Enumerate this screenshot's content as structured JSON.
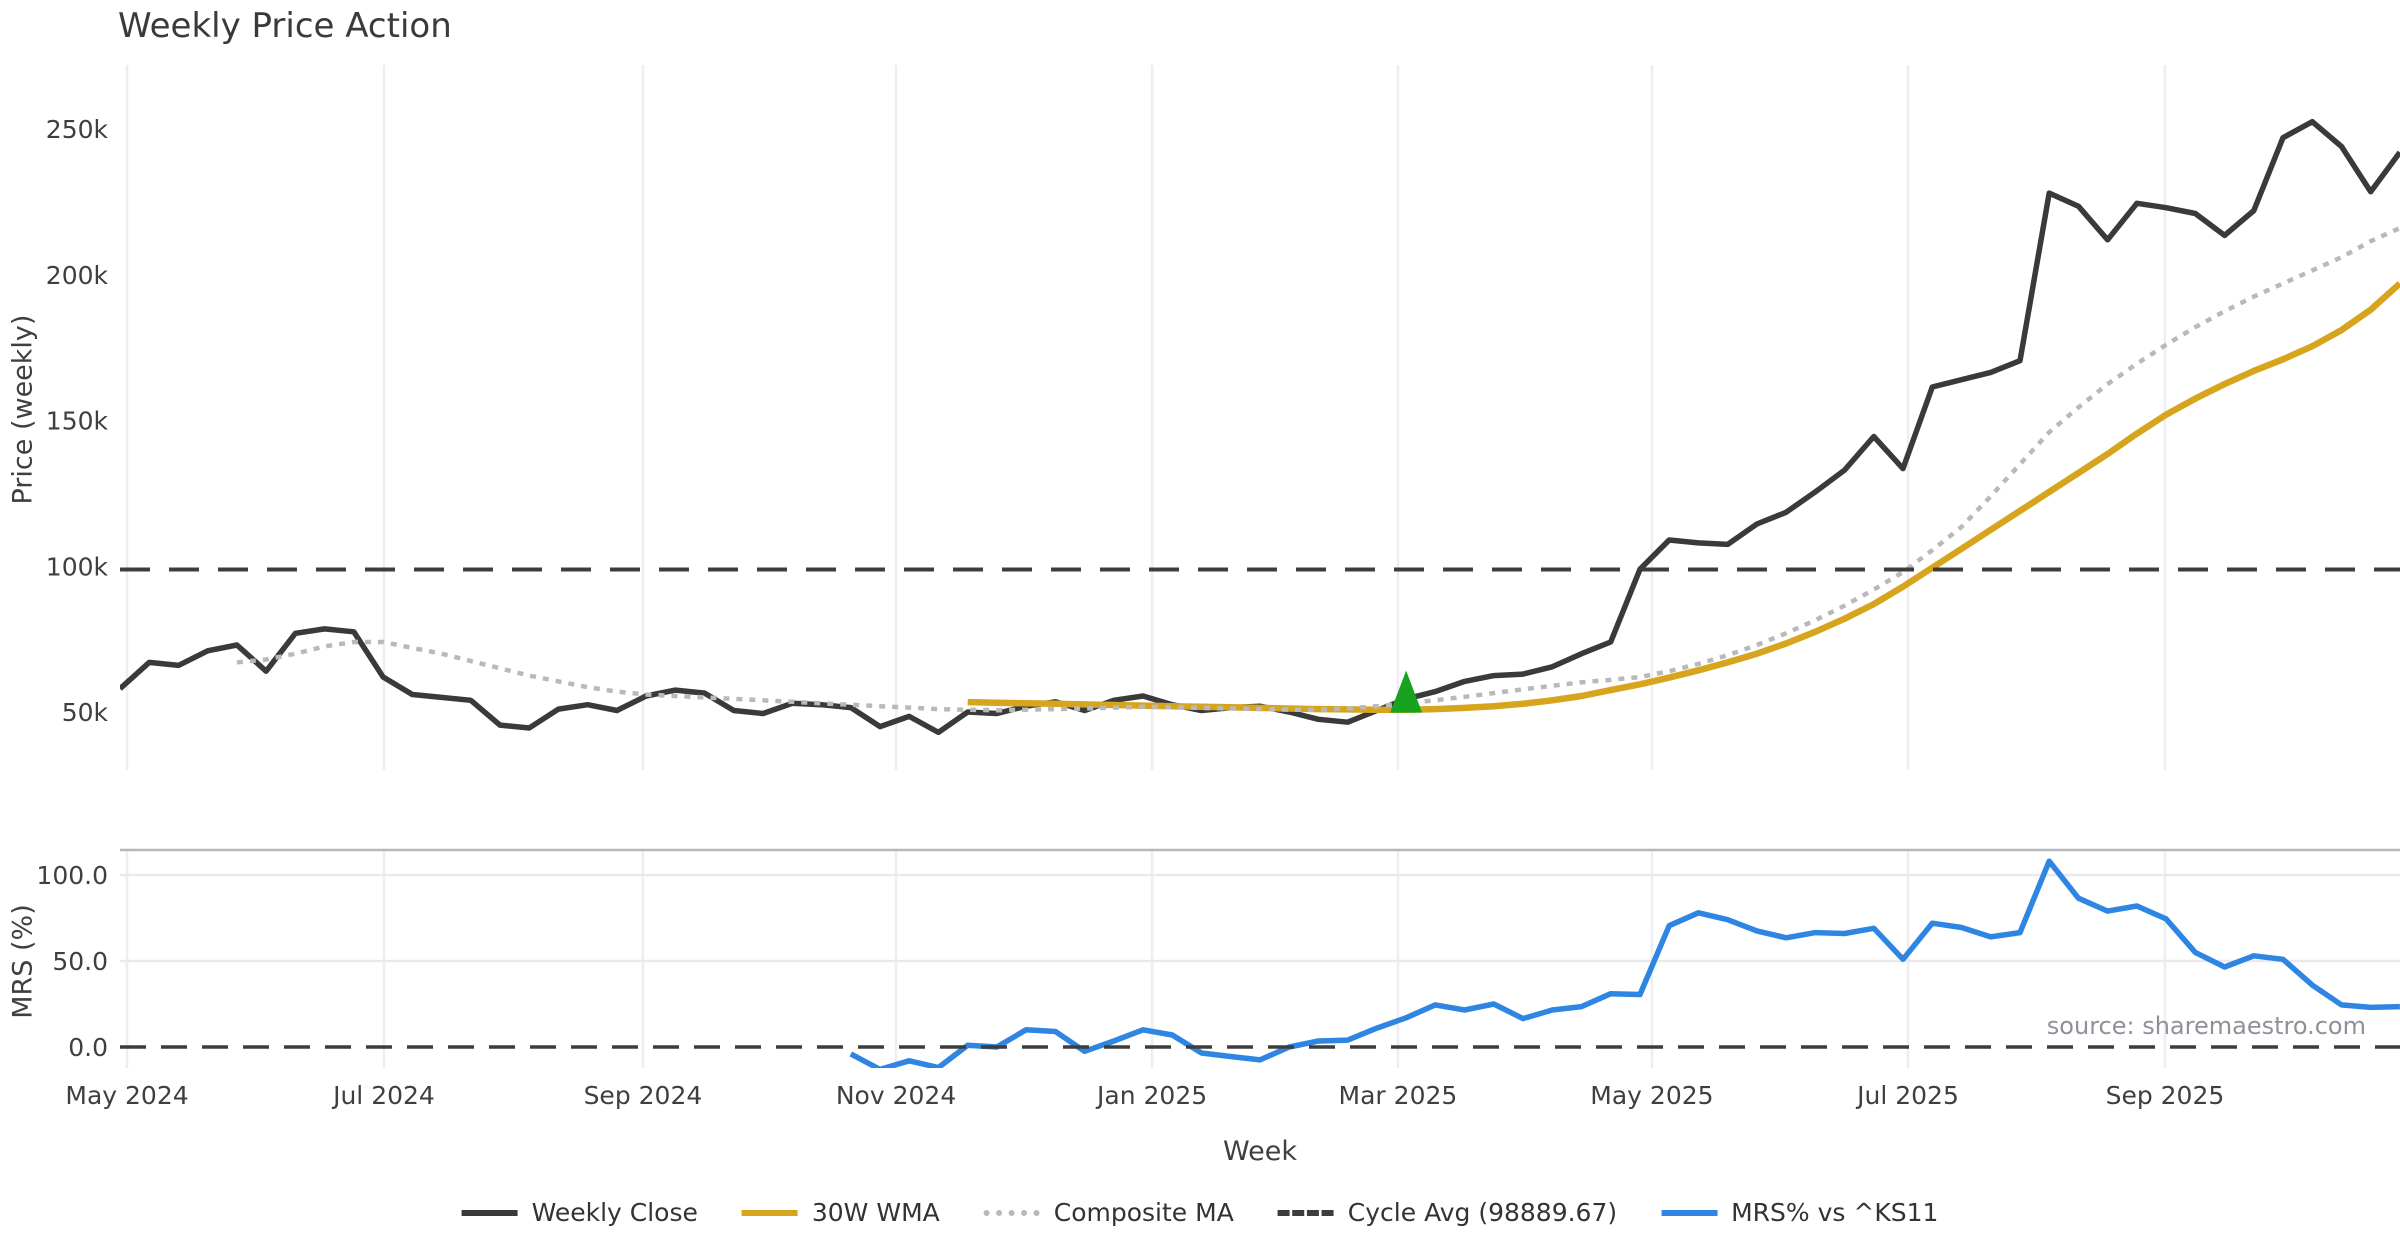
{
  "title": "Weekly Price Action",
  "source_note": "source: sharemaestro.com",
  "legend": {
    "items": [
      {
        "label": "Weekly Close",
        "color": "#3a3a3a",
        "style": "solid"
      },
      {
        "label": "30W WMA",
        "color": "#d7a51d",
        "style": "solid"
      },
      {
        "label": "Composite MA",
        "color": "#b9b9b9",
        "style": "dotted"
      },
      {
        "label": "Cycle Avg (98889.67)",
        "color": "#3d3d3d",
        "style": "dashed"
      },
      {
        "label": "MRS% vs ^KS11",
        "color": "#2e86e2",
        "style": "solid"
      }
    ]
  },
  "chart_data": {
    "type": "line",
    "title": "Weekly Price Action",
    "xlabel": "Week",
    "x_unit": "weekly points, week 0 = late Apr 2024",
    "xticks": [
      {
        "label": "May 2024",
        "week": 0.24
      },
      {
        "label": "Jul 2024",
        "week": 9.03
      },
      {
        "label": "Sep 2024",
        "week": 17.89
      },
      {
        "label": "Nov 2024",
        "week": 26.55
      },
      {
        "label": "Jan 2025",
        "week": 35.31
      },
      {
        "label": "Mar 2025",
        "week": 43.72
      },
      {
        "label": "May 2025",
        "week": 52.41
      },
      {
        "label": "Jul 2025",
        "week": 61.17
      },
      {
        "label": "Sep 2025",
        "week": 69.96
      }
    ],
    "panels": [
      {
        "id": "price",
        "ylabel": "Price (weekly)",
        "y_unit": "thousands",
        "ylim": [
          30,
          268
        ],
        "yticks": [
          {
            "v": 50,
            "label": "50k"
          },
          {
            "v": 100,
            "label": "100k"
          },
          {
            "v": 150,
            "label": "150k"
          },
          {
            "v": 200,
            "label": "200k"
          },
          {
            "v": 250,
            "label": "250k"
          }
        ],
        "series": [
          {
            "name": "Weekly Close",
            "color": "#3a3a3a",
            "style": "solid",
            "lw": 5.5,
            "start_week": 0,
            "values": [
              58,
              67,
              66,
              71,
              73,
              64,
              77,
              78.5,
              77.5,
              62,
              56,
              55,
              54,
              45.5,
              44.5,
              51,
              52.5,
              50.5,
              55.5,
              57.5,
              56.5,
              50.5,
              49.5,
              53,
              52.5,
              51.5,
              45,
              48.5,
              43,
              50,
              49.5,
              52,
              53.5,
              50.5,
              54,
              55.5,
              52.5,
              50.5,
              51.5,
              52,
              50,
              47.5,
              46.5,
              50.5,
              54.5,
              57,
              60.5,
              62.5,
              63,
              65.5,
              70,
              74,
              99,
              109,
              108,
              107.5,
              114.5,
              118.5,
              125.5,
              133,
              144.5,
              133.5,
              161.5,
              164,
              166.5,
              170.5,
              228,
              223.5,
              212,
              224.5,
              223,
              221,
              213.5,
              222,
              247,
              252.5,
              244,
              228.5,
              242
            ]
          },
          {
            "name": "30W WMA",
            "color": "#d7a51d",
            "style": "solid",
            "lw": 6.5,
            "start_week": 29,
            "values": [
              53.4,
              53.2,
              53,
              52.8,
              52.6,
              52.4,
              52.2,
              52,
              51.8,
              51.6,
              51.4,
              51.2,
              51,
              50.9,
              50.8,
              50.8,
              51,
              51.4,
              52,
              52.8,
              54,
              55.5,
              57.5,
              59.5,
              61.8,
              64.3,
              67,
              70,
              73.5,
              77.5,
              82,
              87,
              93,
              99.5,
              106,
              112.5,
              119,
              125.5,
              132,
              138.5,
              145.5,
              152,
              157.5,
              162.5,
              167,
              171,
              175.5,
              181,
              188,
              197
            ]
          },
          {
            "name": "Composite MA",
            "color": "#b9b9b9",
            "style": "dotted",
            "lw": 4.5,
            "start_week": 4,
            "values": [
              67,
              68,
              70,
              72.5,
              74,
              74,
              72,
              70,
              67.5,
              65,
              62.5,
              60.5,
              58.5,
              57,
              56,
              55.5,
              55,
              54.5,
              54,
              53.5,
              53,
              52.5,
              52,
              51.5,
              51,
              50.8,
              50.6,
              50.8,
              51,
              51.2,
              51.5,
              51.8,
              51.6,
              51.4,
              51.2,
              51,
              50.8,
              50.8,
              51.2,
              52,
              53,
              54,
              55.2,
              56.5,
              57.8,
              59,
              60.2,
              61,
              62,
              64,
              66.5,
              69.5,
              73,
              77,
              81.5,
              86.5,
              92,
              98,
              105.5,
              113.5,
              124,
              135,
              146,
              154.5,
              162.5,
              169.5,
              176,
              182,
              187.5,
              192.5,
              197,
              201.5,
              206,
              211.5,
              216
            ]
          },
          {
            "name": "Cycle Avg (98889.67)",
            "color": "#3d3d3d",
            "style": "dashed",
            "lw": 4,
            "constant": 98.88967
          }
        ],
        "markers": [
          {
            "symbol": "triangle-up",
            "color": "#17a31f",
            "week": 44,
            "value": 50.8
          }
        ]
      },
      {
        "id": "mrs",
        "ylabel": "MRS (%)",
        "ylim": [
          -12.5,
          114.5
        ],
        "yticks": [
          {
            "v": 0,
            "label": "0.0"
          },
          {
            "v": 50,
            "label": "50.0"
          },
          {
            "v": 100,
            "label": "100.0"
          }
        ],
        "series": [
          {
            "name": "MRS% vs ^KS11",
            "color": "#2e86e2",
            "style": "solid",
            "lw": 5.5,
            "start_week": 25,
            "values": [
              -4,
              -13,
              -8,
              -12,
              1,
              0,
              10,
              9,
              -2.5,
              3.5,
              10,
              7,
              -3.5,
              -5.5,
              -7.5,
              0,
              3.5,
              4,
              11,
              17,
              24.5,
              21.5,
              25,
              16.5,
              21.5,
              23.5,
              31,
              30.5,
              70.5,
              78,
              74,
              67.5,
              63.5,
              66.5,
              66,
              69,
              51,
              72,
              69.5,
              64,
              66.5,
              108,
              86.5,
              79,
              82,
              74.5,
              55,
              46.5,
              53,
              51,
              36,
              24.5,
              23,
              23.5
            ]
          },
          {
            "name": "zero line",
            "color": "#3d3d3d",
            "style": "dashed",
            "lw": 3.5,
            "constant": 0
          }
        ]
      }
    ],
    "legend_position": "bottom center",
    "grid": "vertical month gridlines, light horizontal gridlines in lower panel"
  }
}
